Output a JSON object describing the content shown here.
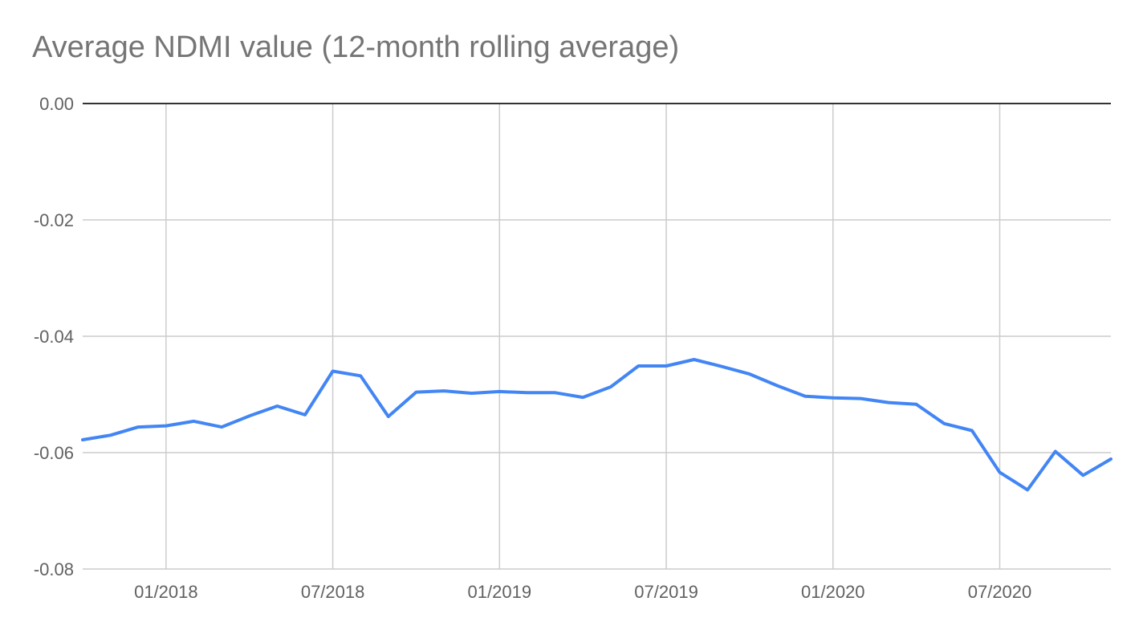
{
  "chart_data": {
    "type": "line",
    "title": "Average NDMI value (12-month rolling average)",
    "xlabel": "",
    "ylabel": "",
    "ylim": [
      -0.08,
      0.0
    ],
    "yticks": [
      "0.00",
      "-0.02",
      "-0.04",
      "-0.06",
      "-0.08"
    ],
    "ytick_values": [
      0.0,
      -0.02,
      -0.04,
      -0.06,
      -0.08
    ],
    "xticks": [
      "01/2018",
      "07/2018",
      "01/2019",
      "07/2019",
      "01/2020",
      "07/2020"
    ],
    "xtick_dates": [
      "2018-01",
      "2018-07",
      "2019-01",
      "2019-07",
      "2020-01",
      "2020-07"
    ],
    "xlim": [
      "2017-10",
      "2020-11"
    ],
    "grid": true,
    "legend": "none",
    "colors": {
      "line": "#4285f4",
      "grid": "#cccccc",
      "zero_line": "#333333"
    },
    "series": [
      {
        "x": [
          "2017-10",
          "2017-11",
          "2017-12",
          "2018-01",
          "2018-02",
          "2018-03",
          "2018-04",
          "2018-05",
          "2018-06",
          "2018-07",
          "2018-08",
          "2018-09",
          "2018-10",
          "2018-11",
          "2018-12",
          "2019-01",
          "2019-02",
          "2019-03",
          "2019-04",
          "2019-05",
          "2019-06",
          "2019-07",
          "2019-08",
          "2019-09",
          "2019-10",
          "2019-11",
          "2019-12",
          "2020-01",
          "2020-02",
          "2020-03",
          "2020-04",
          "2020-05",
          "2020-06",
          "2020-07",
          "2020-08",
          "2020-09",
          "2020-10",
          "2020-11"
        ],
        "values": [
          -0.0578,
          -0.057,
          -0.0556,
          -0.0554,
          -0.0546,
          -0.0556,
          -0.0537,
          -0.052,
          -0.0535,
          -0.046,
          -0.0468,
          -0.0538,
          -0.0496,
          -0.0494,
          -0.0498,
          -0.0495,
          -0.0497,
          -0.0497,
          -0.0505,
          -0.0487,
          -0.0451,
          -0.0451,
          -0.044,
          -0.0452,
          -0.0465,
          -0.0485,
          -0.0503,
          -0.0506,
          -0.0507,
          -0.0514,
          -0.0517,
          -0.055,
          -0.0562,
          -0.0634,
          -0.0664,
          -0.0598,
          -0.0639,
          -0.0611
        ]
      }
    ]
  }
}
